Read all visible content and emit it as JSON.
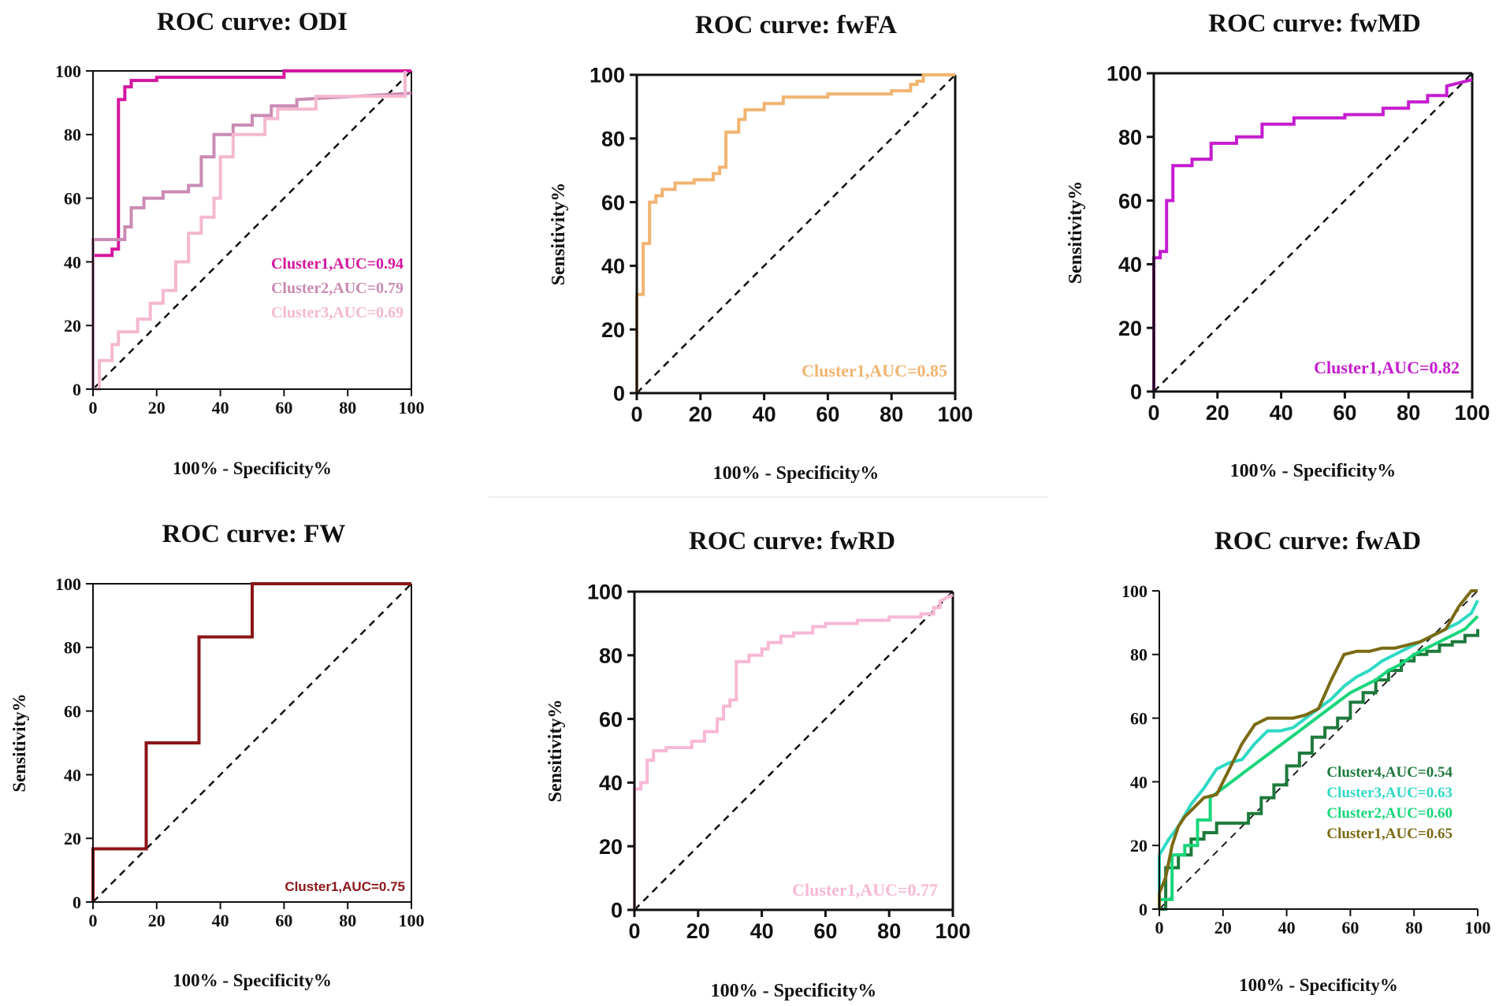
{
  "chart_data": [
    {
      "type": "line",
      "title": "ROC curve: ODI",
      "xlabel": "100% - Specificity%",
      "ylabel": "",
      "xlim": [
        0,
        100
      ],
      "ylim": [
        0,
        100
      ],
      "xticks": [
        "0",
        "20",
        "40",
        "60",
        "80",
        "100"
      ],
      "yticks": [
        "0",
        "20",
        "40",
        "60",
        "80",
        "100"
      ],
      "legend_position": "bottom-right",
      "series": [
        {
          "name": "Cluster1,AUC=0.94",
          "color": "#d4169e",
          "x": [
            0,
            0,
            6,
            6,
            8,
            8,
            10,
            10,
            12,
            12,
            20,
            20,
            60,
            60,
            100
          ],
          "y": [
            0,
            42,
            42,
            44,
            44,
            91,
            91,
            95,
            95,
            97,
            97,
            98,
            98,
            100,
            100
          ]
        },
        {
          "name": "Cluster2,AUC=0.79",
          "color": "#c98bb3",
          "x": [
            0,
            0,
            10,
            10,
            12,
            12,
            16,
            16,
            22,
            22,
            30,
            30,
            34,
            34,
            38,
            38,
            44,
            44,
            50,
            50,
            56,
            56,
            64,
            64,
            100
          ],
          "y": [
            0,
            47,
            47,
            51,
            51,
            57,
            57,
            60,
            60,
            62,
            62,
            64,
            64,
            73,
            73,
            80,
            80,
            83,
            83,
            86,
            86,
            89,
            89,
            91,
            93
          ]
        },
        {
          "name": "Cluster3,AUC=0.69",
          "color": "#f4b8d0",
          "x": [
            0,
            2,
            2,
            6,
            6,
            8,
            8,
            14,
            14,
            18,
            18,
            22,
            22,
            26,
            26,
            30,
            30,
            34,
            34,
            38,
            38,
            40,
            40,
            44,
            44,
            54,
            54,
            58,
            58,
            70,
            70,
            98,
            98
          ],
          "y": [
            0,
            0,
            9,
            9,
            14,
            14,
            18,
            18,
            22,
            22,
            27,
            27,
            31,
            31,
            40,
            40,
            49,
            49,
            54,
            54,
            60,
            60,
            73,
            73,
            80,
            80,
            85,
            85,
            88,
            88,
            92,
            92,
            100
          ]
        }
      ]
    },
    {
      "type": "line",
      "title": "ROC curve: fwFA",
      "xlabel": "100% - Specificity%",
      "ylabel": "Sensitivity%",
      "xlim": [
        0,
        100
      ],
      "ylim": [
        0,
        100
      ],
      "xticks": [
        "0",
        "20",
        "40",
        "60",
        "80",
        "100"
      ],
      "yticks": [
        "0",
        "20",
        "40",
        "60",
        "80",
        "100"
      ],
      "legend_position": "bottom-right",
      "series": [
        {
          "name": "Cluster1,AUC=0.85",
          "color": "#f0b470",
          "x": [
            0,
            0,
            2,
            2,
            4,
            4,
            6,
            6,
            8,
            8,
            12,
            12,
            18,
            18,
            24,
            24,
            26,
            26,
            28,
            28,
            32,
            32,
            34,
            34,
            40,
            40,
            46,
            46,
            60,
            60,
            80,
            80,
            86,
            86,
            88,
            88,
            90,
            90,
            100
          ],
          "y": [
            0,
            31,
            31,
            47,
            47,
            60,
            60,
            62,
            62,
            64,
            64,
            66,
            66,
            67,
            67,
            69,
            69,
            71,
            71,
            82,
            82,
            86,
            86,
            89,
            89,
            91,
            91,
            93,
            93,
            94,
            94,
            95,
            95,
            97,
            97,
            98,
            98,
            100,
            100
          ]
        }
      ]
    },
    {
      "type": "line",
      "title": "ROC curve: fwMD",
      "xlabel": "100% - Specificity%",
      "ylabel": "Sensitivity%",
      "xlim": [
        0,
        100
      ],
      "ylim": [
        0,
        100
      ],
      "xticks": [
        "0",
        "20",
        "40",
        "60",
        "80",
        "100"
      ],
      "yticks": [
        "0",
        "20",
        "40",
        "60",
        "80",
        "100"
      ],
      "legend_position": "bottom-right",
      "series": [
        {
          "name": "Cluster1,AUC=0.82",
          "color": "#c51ccf",
          "x": [
            0,
            0,
            2,
            2,
            4,
            4,
            6,
            6,
            12,
            12,
            18,
            18,
            26,
            26,
            34,
            34,
            44,
            44,
            60,
            60,
            72,
            72,
            80,
            80,
            86,
            86,
            92,
            92,
            100
          ],
          "y": [
            0,
            42,
            42,
            44,
            44,
            60,
            60,
            71,
            71,
            73,
            73,
            78,
            78,
            80,
            80,
            84,
            84,
            86,
            86,
            87,
            87,
            89,
            89,
            91,
            91,
            93,
            93,
            96,
            98
          ]
        }
      ]
    },
    {
      "type": "line",
      "title": "ROC curve: FW",
      "xlabel": "100% - Specificity%",
      "ylabel": "Sensitivity%",
      "xlim": [
        0,
        100
      ],
      "ylim": [
        0,
        100
      ],
      "xticks": [
        "0",
        "20",
        "40",
        "60",
        "80",
        "100"
      ],
      "yticks": [
        "0",
        "20",
        "40",
        "60",
        "80",
        "100"
      ],
      "legend_position": "bottom-right",
      "series": [
        {
          "name": "Cluster1,AUC=0.75",
          "color": "#8b1518",
          "x": [
            0,
            0,
            16.7,
            16.7,
            33.3,
            33.3,
            50,
            50,
            100
          ],
          "y": [
            0,
            16.7,
            16.7,
            50,
            50,
            83.3,
            83.3,
            100,
            100
          ]
        }
      ]
    },
    {
      "type": "line",
      "title": "ROC curve: fwRD",
      "xlabel": "100% - Specificity%",
      "ylabel": "Sensitivity%",
      "xlim": [
        0,
        100
      ],
      "ylim": [
        0,
        100
      ],
      "xticks": [
        "0",
        "20",
        "40",
        "60",
        "80",
        "100"
      ],
      "yticks": [
        "0",
        "20",
        "40",
        "60",
        "80",
        "100"
      ],
      "legend_position": "bottom-right",
      "series": [
        {
          "name": "Cluster1,AUC=0.77",
          "color": "#f7b8d5",
          "x": [
            0,
            0,
            2,
            2,
            4,
            4,
            6,
            6,
            10,
            10,
            18,
            18,
            22,
            22,
            26,
            26,
            28,
            28,
            30,
            30,
            32,
            32,
            36,
            36,
            40,
            40,
            42,
            42,
            46,
            46,
            50,
            50,
            56,
            56,
            60,
            60,
            70,
            70,
            80,
            80,
            90,
            90,
            94,
            94,
            96,
            96,
            100
          ],
          "y": [
            0,
            38,
            38,
            40,
            40,
            47,
            47,
            50,
            50,
            51,
            51,
            53,
            53,
            56,
            56,
            60,
            60,
            64,
            64,
            66,
            66,
            78,
            78,
            80,
            80,
            82,
            82,
            84,
            84,
            86,
            86,
            87,
            87,
            89,
            89,
            90,
            90,
            91,
            91,
            92,
            92,
            93,
            93,
            95,
            95,
            97,
            99
          ]
        }
      ]
    },
    {
      "type": "line",
      "title": "ROC curve: fwAD",
      "xlabel": "100% - Specificity%",
      "ylabel": "",
      "xlim": [
        0,
        100
      ],
      "ylim": [
        0,
        100
      ],
      "xticks": [
        "0",
        "20",
        "40",
        "60",
        "80",
        "100"
      ],
      "yticks": [
        "0",
        "20",
        "40",
        "60",
        "80",
        "100"
      ],
      "legend_position": "bottom-right",
      "series": [
        {
          "name": "Cluster4,AUC=0.54",
          "color": "#1e7a3c",
          "x": [
            0,
            2,
            2,
            6,
            6,
            10,
            10,
            14,
            14,
            18,
            18,
            24,
            24,
            28,
            28,
            32,
            32,
            36,
            36,
            40,
            40,
            44,
            44,
            48,
            48,
            52,
            52,
            56,
            56,
            60,
            60,
            64,
            64,
            68,
            68,
            72,
            72,
            76,
            76,
            80,
            80,
            84,
            84,
            88,
            88,
            92,
            92,
            96,
            96,
            100,
            100
          ],
          "y": [
            0,
            0,
            13,
            13,
            17,
            17,
            22,
            22,
            24,
            24,
            27,
            27,
            27,
            27,
            30,
            30,
            35,
            35,
            39,
            39,
            45,
            45,
            49,
            49,
            54,
            54,
            57,
            57,
            60,
            60,
            65,
            65,
            68,
            68,
            72,
            72,
            75,
            75,
            78,
            78,
            80,
            80,
            81,
            81,
            83,
            83,
            84,
            84,
            86,
            86,
            88
          ]
        },
        {
          "name": "Cluster3,AUC=0.63",
          "color": "#2fd9c4",
          "x": [
            0,
            0,
            3,
            6,
            10,
            14,
            18,
            22,
            26,
            30,
            34,
            38,
            42,
            46,
            50,
            54,
            58,
            62,
            66,
            70,
            74,
            78,
            82,
            86,
            90,
            94,
            98,
            100
          ],
          "y": [
            0,
            17,
            22,
            26,
            33,
            38,
            44,
            46,
            47,
            52,
            56,
            56,
            57,
            60,
            63,
            66,
            70,
            73,
            75,
            78,
            80,
            82,
            84,
            86,
            88,
            90,
            93,
            97
          ]
        },
        {
          "name": "Cluster2,AUC=0.60",
          "color": "#19d67a",
          "x": [
            0,
            0,
            4,
            4,
            8,
            8,
            12,
            12,
            16,
            16,
            20,
            24,
            28,
            32,
            36,
            40,
            44,
            48,
            52,
            56,
            60,
            64,
            68,
            72,
            76,
            80,
            84,
            88,
            92,
            96,
            100
          ],
          "y": [
            0,
            3,
            3,
            17,
            17,
            20,
            20,
            28,
            28,
            35,
            38,
            41,
            44,
            47,
            50,
            53,
            56,
            59,
            62,
            65,
            68,
            70,
            72,
            75,
            77,
            80,
            82,
            84,
            86,
            88,
            92
          ]
        },
        {
          "name": "Cluster1,AUC=0.65",
          "color": "#7a6a14",
          "x": [
            0,
            0,
            2,
            4,
            6,
            8,
            10,
            14,
            18,
            22,
            26,
            30,
            34,
            38,
            42,
            46,
            50,
            54,
            58,
            62,
            66,
            70,
            74,
            78,
            82,
            86,
            90,
            94,
            98,
            100
          ],
          "y": [
            0,
            5,
            10,
            20,
            26,
            29,
            31,
            35,
            36,
            44,
            52,
            58,
            60,
            60,
            60,
            61,
            63,
            72,
            80,
            81,
            81,
            82,
            82,
            83,
            84,
            86,
            88,
            95,
            100,
            100
          ]
        }
      ]
    }
  ]
}
